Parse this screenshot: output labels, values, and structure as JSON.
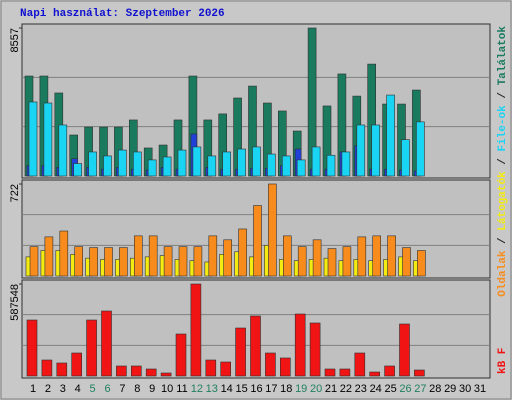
{
  "chart_data": [
    {
      "type": "bar",
      "title": "Napi használat: Szeptember 2026",
      "legend_separator": "/",
      "ylim": [
        0,
        8557
      ],
      "yticks": [
        8557
      ],
      "grid": true,
      "series": [
        {
          "name": "Találatok",
          "color": "#1a7a5e",
          "values": [
            5780,
            5780,
            4800,
            2370,
            2830,
            2830,
            2830,
            3240,
            1620,
            1790,
            3240,
            5780,
            3240,
            3590,
            4510,
            5200,
            4220,
            3760,
            2600,
            8557,
            4050,
            5900,
            4620,
            6470,
            4160,
            4160,
            4970,
            null,
            null,
            null,
            null
          ]
        },
        {
          "color": "#2040d8",
          "values": [
            600,
            600,
            500,
            1000,
            500,
            400,
            500,
            400,
            350,
            500,
            400,
            2430,
            500,
            400,
            400,
            450,
            450,
            600,
            1560,
            400,
            400,
            1400,
            1750,
            400,
            400,
            350,
            300,
            null,
            null,
            null,
            null
          ]
        },
        {
          "name": "File-ok",
          "color": "#1ad4f4",
          "values": [
            4280,
            4220,
            2950,
            720,
            1390,
            1160,
            1500,
            1390,
            930,
            1100,
            1500,
            1680,
            1160,
            1390,
            1560,
            1680,
            1270,
            1160,
            930,
            1680,
            1200,
            1390,
            2950,
            2950,
            4680,
            2100,
            3130,
            null,
            null,
            null,
            null
          ]
        }
      ]
    },
    {
      "type": "bar",
      "ylim": [
        0,
        722
      ],
      "yticks": [
        722
      ],
      "grid": true,
      "series": [
        {
          "name": "Látogatók",
          "color": "#f4ec10",
          "values": [
            150,
            200,
            200,
            170,
            140,
            130,
            130,
            140,
            150,
            160,
            130,
            120,
            110,
            170,
            190,
            150,
            240,
            130,
            120,
            130,
            140,
            120,
            130,
            120,
            130,
            150,
            120,
            null,
            null,
            null,
            null
          ]
        },
        {
          "name": "Oldalak",
          "color": "#f78c1c",
          "values": [
            230,
            307,
            353,
            230,
            223,
            223,
            223,
            315,
            315,
            230,
            230,
            230,
            315,
            284,
            369,
            553,
            722,
            315,
            230,
            284,
            215,
            230,
            307,
            315,
            315,
            223,
            200,
            null,
            null,
            null,
            null
          ]
        }
      ]
    },
    {
      "type": "bar",
      "ylim": [
        0,
        587548
      ],
      "yticks": [
        587548
      ],
      "grid": true,
      "categories": [
        "1",
        "2",
        "3",
        "4",
        "5",
        "6",
        "7",
        "8",
        "9",
        "10",
        "11",
        "12",
        "13",
        "14",
        "15",
        "16",
        "17",
        "18",
        "19",
        "20",
        "21",
        "22",
        "23",
        "24",
        "25",
        "26",
        "27",
        "28",
        "29",
        "30",
        "31"
      ],
      "category_colors": [
        "#000",
        "#000",
        "#000",
        "#000",
        "#208060",
        "#208060",
        "#000",
        "#000",
        "#000",
        "#000",
        "#000",
        "#208060",
        "#208060",
        "#000",
        "#000",
        "#000",
        "#000",
        "#000",
        "#208060",
        "#208060",
        "#000",
        "#000",
        "#000",
        "#000",
        "#000",
        "#208060",
        "#208060",
        "#000",
        "#000",
        "#000",
        "#000"
      ],
      "series": [
        {
          "name": "kB F",
          "color": "#f01414",
          "values": [
            357600,
            102200,
            83000,
            146900,
            357600,
            415100,
            63900,
            63900,
            44700,
            19200,
            268200,
            587548,
            102200,
            89400,
            306500,
            383200,
            146900,
            115000,
            395900,
            338500,
            44700,
            44700,
            146900,
            25500,
            63900,
            332100,
            38300,
            null,
            null,
            null,
            null
          ]
        }
      ]
    }
  ]
}
